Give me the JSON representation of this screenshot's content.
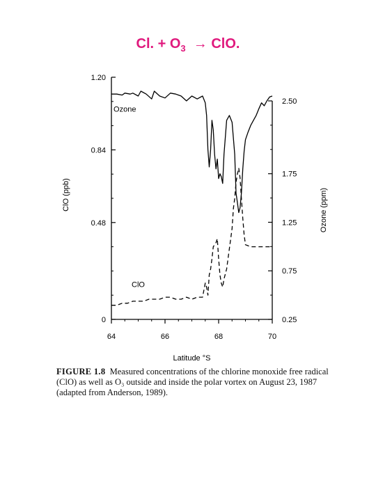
{
  "header": {
    "equation_pre": "Cl. + O",
    "equation_sub": "3",
    "equation_arrow": "→",
    "equation_post": "ClO."
  },
  "colors": {
    "equation": "#e0197d",
    "ink": "#000000"
  },
  "caption": {
    "figure_label": "FIGURE 1.8",
    "text": "Measured concentrations of the chlorine monoxide free radical (ClO) as well as O₃ outside and inside the polar vortex on August 23, 1987 (adapted from Anderson, 1989)."
  },
  "chart_data": {
    "type": "line",
    "xlabel": "Latitude °S",
    "ylabel_left": "ClO (ppb)",
    "ylabel_right": "Ozone (ppm)",
    "xlim": [
      64,
      70
    ],
    "ylim_left": [
      0,
      1.2
    ],
    "ylim_right": [
      0.25,
      2.5
    ],
    "x_ticks": [
      "64",
      "66",
      "68",
      "70"
    ],
    "y_ticks_left": [
      "0",
      "0.48",
      "0.84",
      "1.20"
    ],
    "y_ticks_right": [
      "0.25",
      "0.75",
      "1.25",
      "1.75",
      "2.50"
    ],
    "grid": false,
    "series": [
      {
        "name": "Ozone",
        "axis": "right",
        "style": "solid",
        "x": [
          64.0,
          64.2,
          64.4,
          64.5,
          64.7,
          64.8,
          65.0,
          65.1,
          65.3,
          65.5,
          65.6,
          65.8,
          66.0,
          66.2,
          66.4,
          66.6,
          66.8,
          67.0,
          67.2,
          67.4,
          67.5,
          67.55,
          67.6,
          67.65,
          67.7,
          67.75,
          67.8,
          67.85,
          67.9,
          67.95,
          68.0,
          68.05,
          68.1,
          68.15,
          68.2,
          68.3,
          68.4,
          68.5,
          68.6,
          68.65,
          68.7,
          68.75,
          68.8,
          68.85,
          68.9,
          68.95,
          69.0,
          69.1,
          69.2,
          69.3,
          69.4,
          69.5,
          69.6,
          69.7,
          69.8,
          69.9,
          70.0
        ],
        "y": [
          2.57,
          2.57,
          2.56,
          2.58,
          2.57,
          2.58,
          2.55,
          2.6,
          2.57,
          2.52,
          2.6,
          2.55,
          2.53,
          2.58,
          2.57,
          2.55,
          2.5,
          2.55,
          2.52,
          2.55,
          2.48,
          2.35,
          2.0,
          1.82,
          2.0,
          2.3,
          2.2,
          1.95,
          1.8,
          1.9,
          1.7,
          1.75,
          1.72,
          1.65,
          1.95,
          2.3,
          2.35,
          2.28,
          1.95,
          1.55,
          1.45,
          1.35,
          1.4,
          1.55,
          1.8,
          1.98,
          2.1,
          2.18,
          2.25,
          2.3,
          2.35,
          2.42,
          2.48,
          2.45,
          2.5,
          2.54,
          2.55
        ]
      },
      {
        "name": "ClO",
        "axis": "left",
        "style": "dashed",
        "x": [
          64.0,
          64.2,
          64.4,
          64.6,
          64.8,
          65.0,
          65.2,
          65.4,
          65.6,
          65.8,
          66.0,
          66.2,
          66.4,
          66.6,
          66.8,
          67.0,
          67.2,
          67.4,
          67.5,
          67.55,
          67.6,
          67.65,
          67.7,
          67.75,
          67.8,
          67.85,
          67.9,
          67.95,
          68.0,
          68.05,
          68.1,
          68.15,
          68.2,
          68.3,
          68.4,
          68.5,
          68.55,
          68.6,
          68.65,
          68.7,
          68.75,
          68.8,
          68.85,
          68.9,
          68.95,
          69.0,
          69.2,
          69.4,
          69.6,
          69.8,
          70.0
        ],
        "y": [
          0.07,
          0.07,
          0.08,
          0.08,
          0.09,
          0.09,
          0.09,
          0.1,
          0.1,
          0.1,
          0.11,
          0.11,
          0.1,
          0.1,
          0.11,
          0.1,
          0.11,
          0.11,
          0.18,
          0.16,
          0.12,
          0.22,
          0.25,
          0.3,
          0.36,
          0.37,
          0.38,
          0.4,
          0.3,
          0.22,
          0.18,
          0.16,
          0.2,
          0.25,
          0.35,
          0.45,
          0.55,
          0.6,
          0.68,
          0.72,
          0.75,
          0.7,
          0.6,
          0.5,
          0.42,
          0.37,
          0.36,
          0.36,
          0.36,
          0.36,
          0.36
        ]
      }
    ],
    "annotations": [
      {
        "text": "Ozone",
        "x": 64.5,
        "y_left": 1.03
      },
      {
        "text": "ClO",
        "x": 65.0,
        "y_left": 0.16
      }
    ]
  }
}
